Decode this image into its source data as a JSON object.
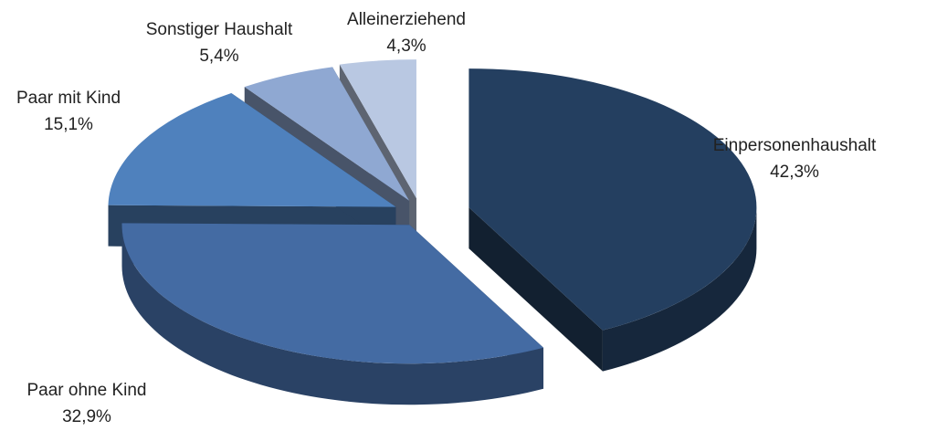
{
  "chart_data": {
    "type": "pie",
    "categories": [
      "Einpersonenhaushalt",
      "Paar ohne Kind",
      "Paar mit Kind",
      "Sonstiger Haushalt",
      "Alleinerziehend"
    ],
    "values": [
      42.3,
      32.9,
      15.1,
      5.4,
      4.3
    ],
    "value_labels": [
      "42,3%",
      "32,9%",
      "15,1%",
      "5,4%",
      "4,3%"
    ],
    "colors": [
      "#243f60",
      "#446ba3",
      "#4f81bd",
      "#8fa8d2",
      "#b9c8e2"
    ]
  }
}
